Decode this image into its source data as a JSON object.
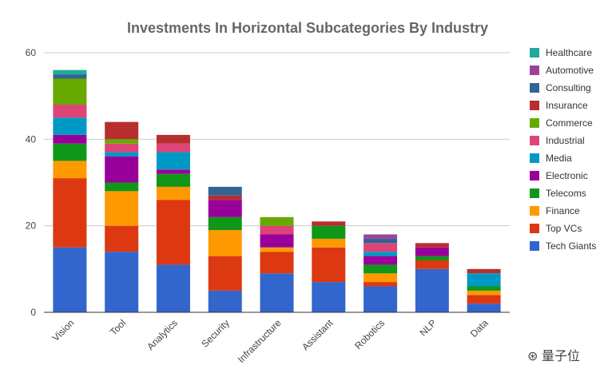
{
  "chart_data": {
    "type": "bar",
    "stacked": true,
    "title": "Investments In Horizontal Subcategories By Industry",
    "xlabel": "",
    "ylabel": "",
    "ylim": [
      0,
      60
    ],
    "yticks": [
      0,
      20,
      40,
      60
    ],
    "grid": true,
    "legend": "right",
    "categories": [
      "Vision",
      "Tool",
      "Analytics",
      "Security",
      "Infrastructure",
      "Assistant",
      "Robotics",
      "NLP",
      "Data"
    ],
    "series": [
      {
        "name": "Tech Giants",
        "color": "#3366cc",
        "values": [
          15,
          14,
          11,
          5,
          9,
          7,
          6,
          10,
          2
        ]
      },
      {
        "name": "Top VCs",
        "color": "#dc3912",
        "values": [
          16,
          6,
          15,
          8,
          5,
          8,
          1,
          2,
          2
        ]
      },
      {
        "name": "Finance",
        "color": "#ff9900",
        "values": [
          4,
          8,
          3,
          6,
          1,
          2,
          2,
          0,
          1
        ]
      },
      {
        "name": "Telecoms",
        "color": "#109618",
        "values": [
          4,
          2,
          3,
          3,
          0,
          3,
          2,
          1,
          1
        ]
      },
      {
        "name": "Electronic",
        "color": "#990099",
        "values": [
          2,
          6,
          1,
          4,
          3,
          0,
          2,
          2,
          0
        ]
      },
      {
        "name": "Media",
        "color": "#0099c6",
        "values": [
          4,
          1,
          4,
          0,
          0,
          0,
          1,
          0,
          3
        ]
      },
      {
        "name": "Industrial",
        "color": "#dd4477",
        "values": [
          3,
          2,
          2,
          0,
          2,
          0,
          2,
          0,
          0
        ]
      },
      {
        "name": "Commerce",
        "color": "#66aa00",
        "values": [
          6,
          1,
          0,
          0,
          2,
          0,
          0,
          0,
          0
        ]
      },
      {
        "name": "Insurance",
        "color": "#b82e2e",
        "values": [
          0,
          4,
          2,
          1,
          0,
          1,
          0,
          1,
          1
        ]
      },
      {
        "name": "Consulting",
        "color": "#316395",
        "values": [
          1,
          0,
          0,
          2,
          0,
          0,
          1,
          0,
          0
        ]
      },
      {
        "name": "Automotive",
        "color": "#994499",
        "values": [
          0,
          0,
          0,
          0,
          0,
          0,
          1,
          0,
          0
        ]
      },
      {
        "name": "Healthcare",
        "color": "#22aa99",
        "values": [
          1,
          0,
          0,
          0,
          0,
          0,
          0,
          0,
          0
        ]
      }
    ]
  },
  "watermark": "量子位"
}
